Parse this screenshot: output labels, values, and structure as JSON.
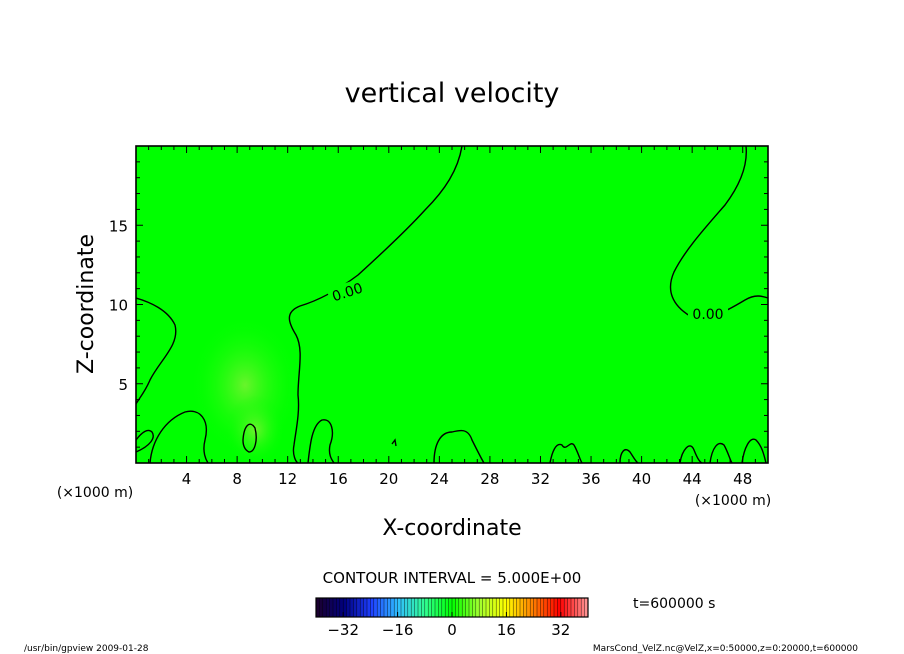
{
  "chart_data": {
    "type": "heatmap",
    "title": "vertical velocity",
    "xlabel": "X-coordinate",
    "ylabel": "Z-coordinate",
    "x_unit": "(×1000 m)",
    "y_unit": "(×1000 m)",
    "xlim": [
      0,
      50
    ],
    "ylim": [
      0,
      20
    ],
    "x_ticks": [
      "4",
      "8",
      "12",
      "16",
      "20",
      "24",
      "28",
      "32",
      "36",
      "40",
      "44",
      "48"
    ],
    "y_ticks": [
      "5",
      "10",
      "15"
    ],
    "contour_interval_text": "CONTOUR INTERVAL = 5.000E+00",
    "contour_labels": [
      "0.00",
      "0.00"
    ],
    "field_value_approx": 0,
    "colorbar": {
      "min": -40,
      "max": 40,
      "ticks": [
        "−32",
        "−16",
        "0",
        "16",
        "32"
      ],
      "colors": [
        "#1a0030",
        "#000080",
        "#1e40ff",
        "#30c0ff",
        "#30ff90",
        "#00ff00",
        "#a0ff30",
        "#ffff00",
        "#ff8000",
        "#ff0000",
        "#ff9090"
      ]
    },
    "time_text": "t=600000 s",
    "background_color": "#00ff00"
  },
  "footer": {
    "left": "/usr/bin/gpview  2009-01-28",
    "right": "MarsCond_VelZ.nc@VelZ,x=0:50000,z=0:20000,t=600000"
  }
}
